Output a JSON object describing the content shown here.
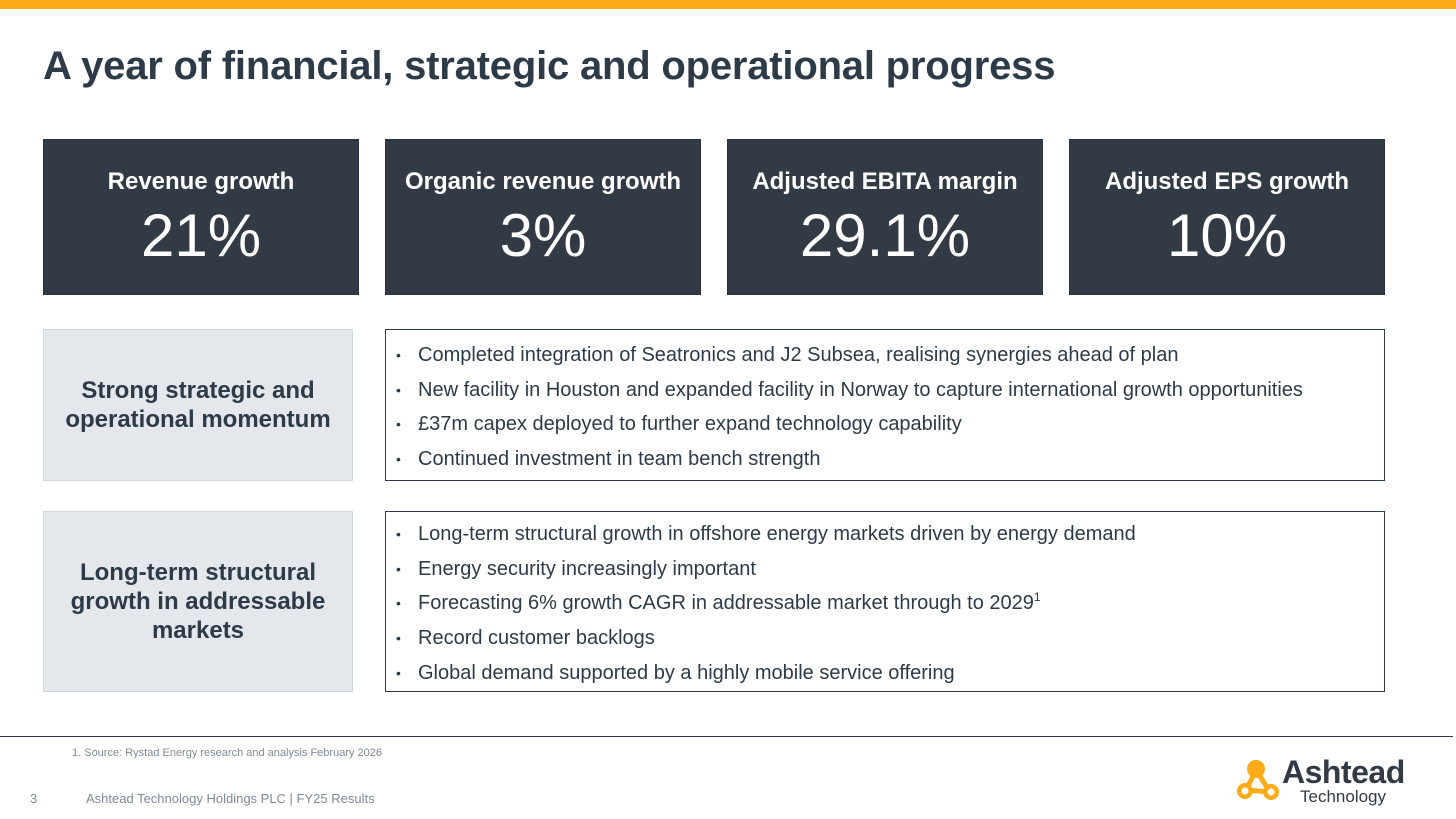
{
  "slide": {
    "title": "A year of financial, strategic and operational progress",
    "accent_color": "#fbab18",
    "dark_color": "#323b45"
  },
  "kpis": [
    {
      "label": "Revenue growth",
      "value": "21%"
    },
    {
      "label": "Organic revenue growth",
      "value": "3%"
    },
    {
      "label": "Adjusted EBITA margin",
      "value": "29.1%"
    },
    {
      "label": "Adjusted EPS growth",
      "value": "10%"
    }
  ],
  "sections": [
    {
      "heading": "Strong strategic and operational momentum",
      "bullets": [
        "Completed integration of Seatronics and J2 Subsea, realising synergies ahead of plan",
        "New facility in Houston and expanded facility in Norway to capture international growth opportunities",
        "£37m capex deployed to further expand technology capability",
        "Continued investment in team bench strength"
      ]
    },
    {
      "heading": "Long-term structural growth in addressable markets",
      "bullets": [
        "Long-term structural growth in offshore energy markets driven by energy demand",
        "Energy security increasingly important",
        "Forecasting 6% growth CAGR in addressable market through to 2029",
        "Record customer backlogs",
        "Global demand supported by a highly mobile service offering"
      ],
      "superscript": "1"
    }
  ],
  "footer": {
    "footnote": "1. Source: Rystad Energy research and analysis February 2026",
    "page_number": "3",
    "text": "Ashtead Technology Holdings PLC | FY25 Results"
  },
  "logo": {
    "name": "Ashtead",
    "tagline": "Technology",
    "icon": "molecule-logo-icon"
  }
}
